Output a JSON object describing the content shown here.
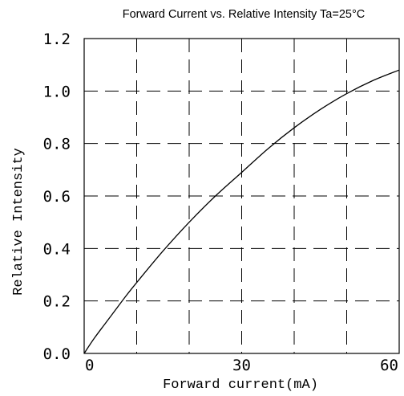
{
  "chart_data": {
    "type": "line",
    "title": "Forward Current vs. Relative Intensity  Ta=25°C",
    "xlabel": "Forward current(mA)",
    "ylabel": "Relative Intensity",
    "xlim": [
      0,
      60
    ],
    "ylim": [
      0,
      1.2
    ],
    "grid": true,
    "grid_style": "dashed",
    "x_ticks": [
      0,
      30,
      60
    ],
    "x_tick_labels": [
      "0",
      "30",
      "60"
    ],
    "x_grid": [
      0,
      10,
      20,
      30,
      40,
      50,
      60
    ],
    "y_ticks": [
      0,
      0.2,
      0.4,
      0.6,
      0.8,
      1.0,
      1.2
    ],
    "y_tick_labels": [
      "0.0",
      "0.2",
      "0.4",
      "0.6",
      "0.8",
      "1.0",
      "1.2"
    ],
    "series": [
      {
        "color": "#000000",
        "x": [
          0,
          2,
          5,
          8,
          10,
          15,
          20,
          25,
          30,
          35,
          40,
          45,
          50,
          55,
          60
        ],
        "y": [
          0,
          0.06,
          0.14,
          0.22,
          0.27,
          0.39,
          0.5,
          0.6,
          0.69,
          0.78,
          0.86,
          0.93,
          0.99,
          1.04,
          1.08
        ]
      }
    ]
  }
}
